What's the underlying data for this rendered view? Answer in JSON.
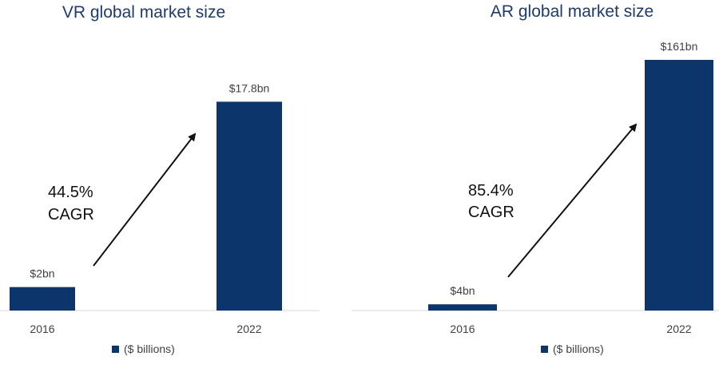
{
  "chart_data": [
    {
      "type": "bar",
      "title": "VR global market size",
      "categories": [
        "2016",
        "2022"
      ],
      "values": [
        2,
        17.8
      ],
      "data_labels": [
        "$2bn",
        "$17.8bn"
      ],
      "series": [
        {
          "name": "($ billions)",
          "values": [
            2,
            17.8
          ]
        }
      ],
      "legend_label": "($ billions)",
      "annotation": {
        "line1": "44.5%",
        "line2": "CAGR"
      },
      "color": "#0b356b",
      "ylim": [
        0,
        23
      ],
      "grid": false,
      "legend_position": "bottom"
    },
    {
      "type": "bar",
      "title": "AR global market size",
      "categories": [
        "2016",
        "2022"
      ],
      "values": [
        4,
        161
      ],
      "data_labels": [
        "$4bn",
        "$161bn"
      ],
      "series": [
        {
          "name": "($ billions)",
          "values": [
            4,
            161
          ]
        }
      ],
      "legend_label": "($ billions)",
      "annotation": {
        "line1": "85.4%",
        "line2": "CAGR"
      },
      "color": "#0b356b",
      "ylim": [
        0,
        161
      ],
      "grid": false,
      "legend_position": "bottom"
    }
  ]
}
